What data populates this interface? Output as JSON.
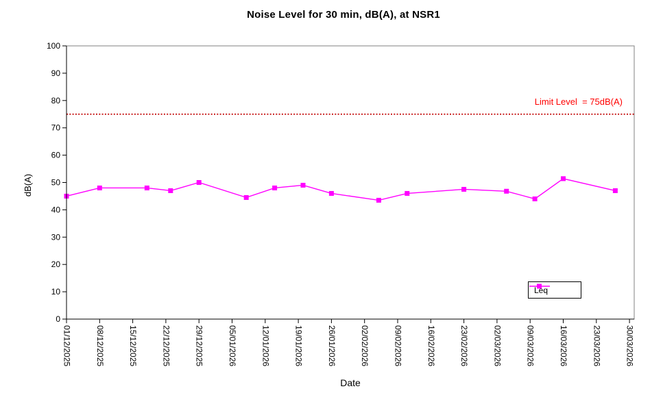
{
  "chart_data": {
    "type": "line",
    "title": "Noise Level for 30 min, dB(A), at NSR1",
    "xlabel": "Date",
    "ylabel": "dB(A)",
    "ylim": [
      0,
      100
    ],
    "y_tick_step": 10,
    "y_tick_labels": [
      "0",
      "10",
      "20",
      "30",
      "40",
      "50",
      "60",
      "70",
      "80",
      "90",
      "100"
    ],
    "x_tick_labels": [
      "01/12/2025",
      "08/12/2025",
      "15/12/2025",
      "22/12/2025",
      "29/12/2025",
      "05/01/2026",
      "12/01/2026",
      "19/01/2026",
      "26/01/2026",
      "02/02/2026",
      "09/02/2026",
      "16/02/2026",
      "23/02/2026",
      "02/03/2026",
      "09/03/2026",
      "16/03/2026",
      "23/03/2026",
      "30/03/2026"
    ],
    "x_tick_interval_days": 7,
    "x_axis_days_range": [
      0,
      120
    ],
    "grid": false,
    "limit_line": {
      "value": 75,
      "label": "Limit Level  = 75dB(A)",
      "line_color": "#c00000",
      "label_color": "#ff0000",
      "style": "dotted"
    },
    "legend": {
      "position": "inside-bottom-right",
      "entries": [
        {
          "label": "Leq",
          "color": "#ff00ff",
          "marker": "square"
        }
      ]
    },
    "series": [
      {
        "name": "Leq",
        "color": "#ff00ff",
        "marker": "square",
        "points": [
          {
            "day": 0,
            "date": "01/12/2025",
            "value": 45
          },
          {
            "day": 7,
            "date": "08/12/2025",
            "value": 48
          },
          {
            "day": 17,
            "date": "18/12/2025",
            "value": 48
          },
          {
            "day": 22,
            "date": "23/12/2025",
            "value": 47
          },
          {
            "day": 28,
            "date": "29/12/2025",
            "value": 50
          },
          {
            "day": 38,
            "date": "08/01/2026",
            "value": 44.5
          },
          {
            "day": 44,
            "date": "14/01/2026",
            "value": 48
          },
          {
            "day": 50,
            "date": "20/01/2026",
            "value": 49
          },
          {
            "day": 56,
            "date": "26/01/2026",
            "value": 46
          },
          {
            "day": 66,
            "date": "05/02/2026",
            "value": 43.5
          },
          {
            "day": 72,
            "date": "11/02/2026",
            "value": 46
          },
          {
            "day": 84,
            "date": "23/02/2026",
            "value": 47.5
          },
          {
            "day": 93,
            "date": "04/03/2026",
            "value": 46.8
          },
          {
            "day": 99,
            "date": "10/03/2026",
            "value": 44
          },
          {
            "day": 105,
            "date": "16/03/2026",
            "value": 51.4
          },
          {
            "day": 116,
            "date": "27/03/2026",
            "value": 47
          }
        ]
      }
    ]
  },
  "colors": {
    "background": "#ffffff",
    "plot_border": "#808080",
    "axis": "#000000",
    "text": "#000000",
    "series": "#ff00ff",
    "limit_line": "#c00000",
    "limit_text": "#ff0000"
  }
}
